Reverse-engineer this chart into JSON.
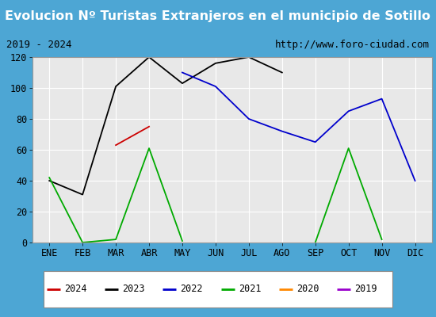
{
  "title": "Evolucion Nº Turistas Extranjeros en el municipio de Sotillo",
  "subtitle_left": "2019 - 2024",
  "subtitle_right": "http://www.foro-ciudad.com",
  "months": [
    "ENE",
    "FEB",
    "MAR",
    "ABR",
    "MAY",
    "JUN",
    "JUL",
    "AGO",
    "SEP",
    "OCT",
    "NOV",
    "DIC"
  ],
  "series": {
    "2024": {
      "color": "#cc0000",
      "data": [
        null,
        null,
        63,
        75,
        null,
        null,
        null,
        null,
        null,
        null,
        null,
        null
      ]
    },
    "2023": {
      "color": "#000000",
      "data": [
        40,
        31,
        101,
        120,
        103,
        116,
        120,
        110,
        null,
        null,
        null,
        null
      ]
    },
    "2022": {
      "color": "#0000cc",
      "data": [
        null,
        null,
        null,
        null,
        110,
        101,
        80,
        72,
        65,
        85,
        93,
        40
      ]
    },
    "2021": {
      "color": "#00aa00",
      "data": [
        42,
        0,
        2,
        61,
        1,
        null,
        null,
        null,
        0,
        61,
        2,
        null
      ]
    },
    "2020": {
      "color": "#ff8800",
      "data": [
        null,
        null,
        null,
        null,
        null,
        null,
        null,
        null,
        null,
        null,
        null,
        null
      ]
    },
    "2019": {
      "color": "#9900cc",
      "data": [
        null,
        null,
        null,
        null,
        null,
        null,
        null,
        null,
        null,
        null,
        null,
        null
      ]
    }
  },
  "ylim": [
    0,
    120
  ],
  "yticks": [
    0,
    20,
    40,
    60,
    80,
    100,
    120
  ],
  "title_bg_color": "#4da6d4",
  "subtitle_bg_color": "#e8e8e8",
  "plot_bg_color": "#e8e8e8",
  "grid_color": "#ffffff",
  "outer_border_color": "#4da6d4",
  "title_fontsize": 11.5,
  "subtitle_fontsize": 9,
  "tick_fontsize": 8.5
}
